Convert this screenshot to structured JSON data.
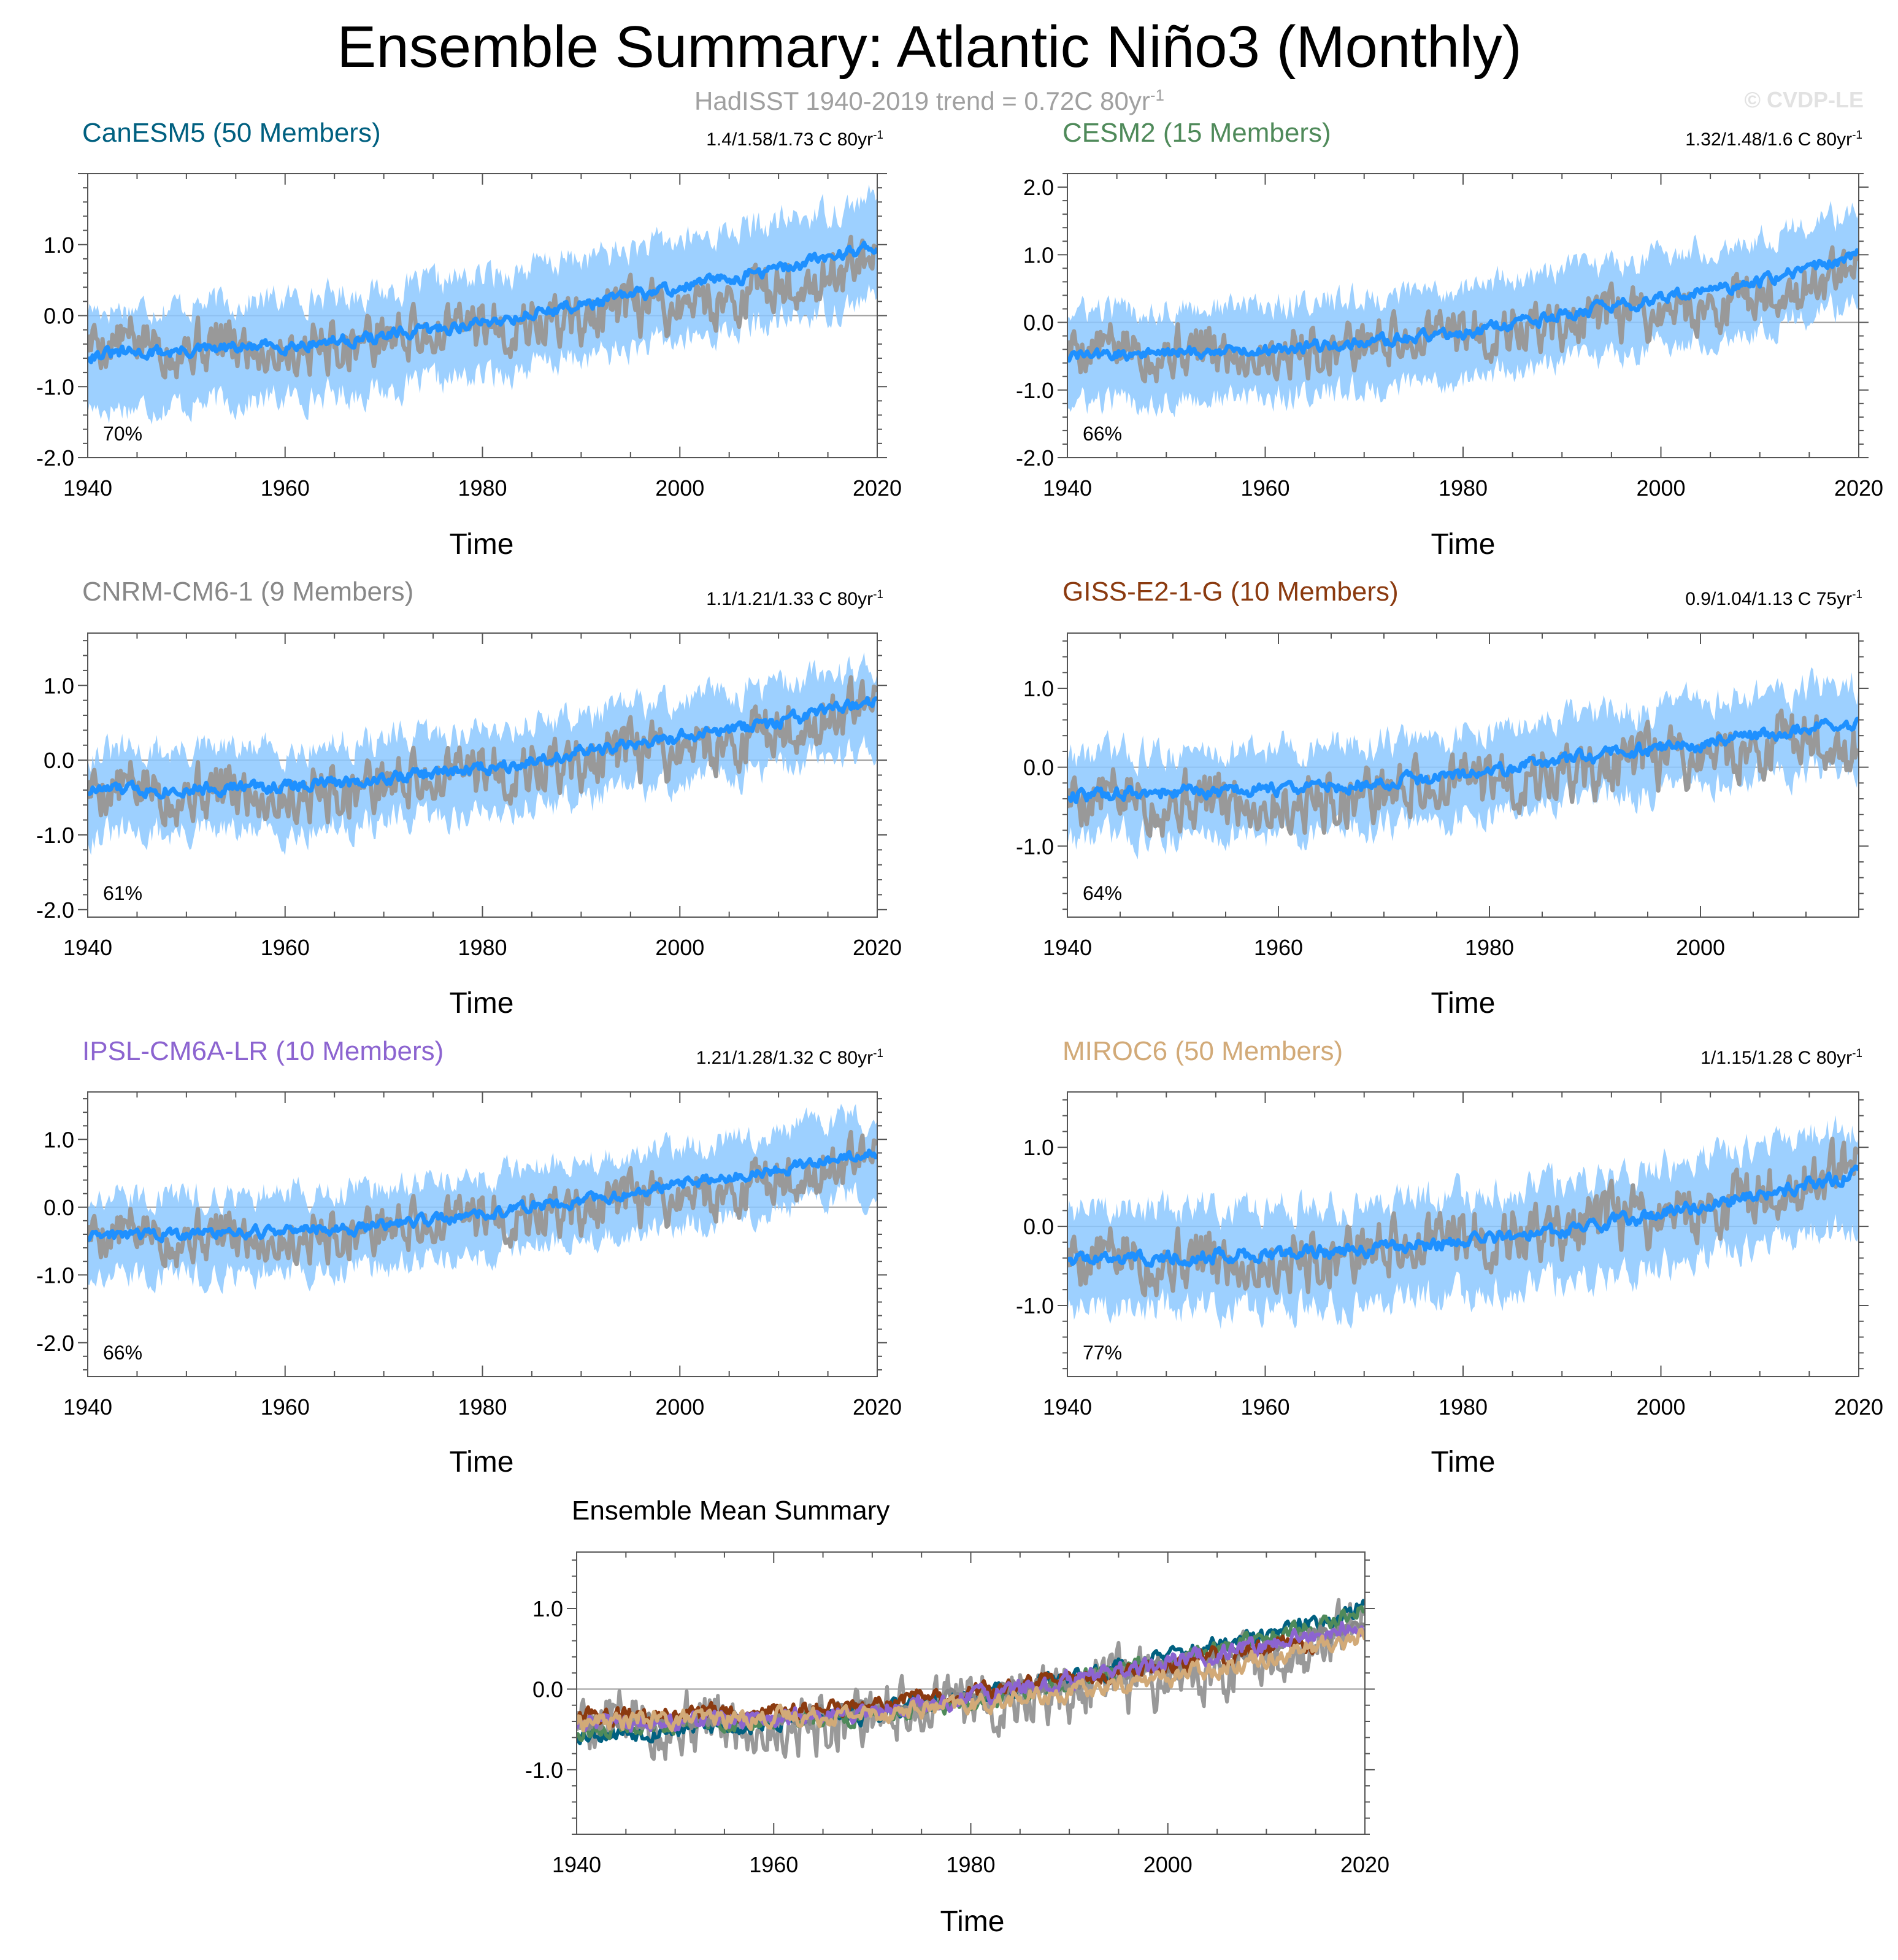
{
  "title": "Ensemble Summary: Atlantic Niño3 (Monthly)",
  "subtitle": {
    "text": "HadISST 1940-2019 trend = 0.72C 80yr",
    "sup": "-1"
  },
  "copyright": "© CVDP-LE",
  "colors": {
    "obs": "#999999",
    "ensemble_mean": "#1e90ff",
    "ensemble_spread": "#8cc8ff",
    "CanESM5": "#006080",
    "CESM2": "#4f8a5a",
    "CNRM-CM6-1": "#888888",
    "GISS-E2-1-G": "#8b3a0f",
    "IPSL-CM6A-LR": "#8c64d0",
    "MIROC6": "#d2aa78"
  },
  "chart_data": [
    {
      "type": "line",
      "id": "canesm5",
      "title": "CanESM5 (50 Members)",
      "title_color": "#006080",
      "trend": "1.4/1.58/1.73 C 80yr",
      "trend_sup": "-1",
      "xlabel": "Time",
      "ylabel": "",
      "xlim": [
        1940,
        2020
      ],
      "ylim": [
        -2.0,
        2.0
      ],
      "xticks": [
        1940,
        1960,
        1980,
        2000,
        2020
      ],
      "yticks": [
        -2.0,
        -1.0,
        0.0,
        1.0
      ],
      "ytick_labels": [
        "-2.0",
        "-1.0",
        "0.0",
        "1.0"
      ],
      "pct": "70%",
      "series": [
        {
          "name": "HadISST",
          "x": [
            1940,
            1950,
            1960,
            1970,
            1980,
            1990,
            2000,
            2010,
            2020
          ],
          "values": [
            -0.35,
            -0.4,
            -0.45,
            -0.3,
            -0.15,
            -0.05,
            0.15,
            0.35,
            0.7
          ]
        },
        {
          "name": "Ensemble mean",
          "x": [
            1940,
            1950,
            1960,
            1970,
            1980,
            1990,
            2000,
            2010,
            2020
          ],
          "values": [
            -0.55,
            -0.5,
            -0.42,
            -0.3,
            -0.1,
            0.15,
            0.4,
            0.65,
            1.0
          ]
        }
      ],
      "spread": {
        "lower_offset": -0.75,
        "upper_offset": 0.65
      }
    },
    {
      "type": "line",
      "id": "cesm2",
      "title": "CESM2 (15 Members)",
      "title_color": "#4f8a5a",
      "trend": "1.32/1.48/1.6 C 80yr",
      "trend_sup": "-1",
      "xlabel": "Time",
      "ylabel": "",
      "xlim": [
        1940,
        2020
      ],
      "ylim": [
        -2.0,
        2.2
      ],
      "xticks": [
        1940,
        1960,
        1980,
        2000,
        2020
      ],
      "yticks": [
        -2.0,
        -1.0,
        0.0,
        1.0,
        2.0
      ],
      "ytick_labels": [
        "-2.0",
        "-1.0",
        "0.0",
        "1.0",
        "2.0"
      ],
      "pct": "66%",
      "series": [
        {
          "name": "HadISST",
          "x": [
            1940,
            1950,
            1960,
            1970,
            1980,
            1990,
            2000,
            2010,
            2020
          ],
          "values": [
            -0.35,
            -0.4,
            -0.45,
            -0.3,
            -0.15,
            -0.05,
            0.15,
            0.35,
            0.7
          ]
        },
        {
          "name": "Ensemble mean",
          "x": [
            1940,
            1950,
            1960,
            1970,
            1980,
            1990,
            2000,
            2010,
            2020
          ],
          "values": [
            -0.5,
            -0.45,
            -0.4,
            -0.3,
            -0.15,
            0.1,
            0.35,
            0.6,
            1.0
          ]
        }
      ],
      "spread": {
        "lower_offset": -0.7,
        "upper_offset": 0.65
      }
    },
    {
      "type": "line",
      "id": "cnrm",
      "title": "CNRM-CM6-1 (9 Members)",
      "title_color": "#888888",
      "trend": "1.1/1.21/1.33 C 80yr",
      "trend_sup": "-1",
      "xlabel": "Time",
      "ylabel": "",
      "xlim": [
        1940,
        2020
      ],
      "ylim": [
        -2.1,
        1.7
      ],
      "xticks": [
        1940,
        1960,
        1980,
        2000,
        2020
      ],
      "yticks": [
        -2.0,
        -1.0,
        0.0,
        1.0
      ],
      "ytick_labels": [
        "-2.0",
        "-1.0",
        "0.0",
        "1.0"
      ],
      "pct": "61%",
      "series": [
        {
          "name": "HadISST",
          "x": [
            1940,
            1950,
            1960,
            1970,
            1980,
            1990,
            2000,
            2010,
            2020
          ],
          "values": [
            -0.35,
            -0.4,
            -0.45,
            -0.3,
            -0.15,
            -0.05,
            0.15,
            0.35,
            0.7
          ]
        },
        {
          "name": "Ensemble mean",
          "x": [
            1940,
            1950,
            1960,
            1970,
            1980,
            1990,
            2000,
            2010,
            2020
          ],
          "values": [
            -0.4,
            -0.38,
            -0.35,
            -0.25,
            -0.1,
            0.1,
            0.3,
            0.5,
            0.8
          ]
        }
      ],
      "spread": {
        "lower_offset": -0.6,
        "upper_offset": 0.5
      }
    },
    {
      "type": "line",
      "id": "giss",
      "title": "GISS-E2-1-G (10 Members)",
      "title_color": "#8b3a0f",
      "trend": "0.9/1.04/1.13 C 75yr",
      "trend_sup": "-1",
      "xlabel": "Time",
      "ylabel": "",
      "xlim": [
        1940,
        2015
      ],
      "ylim": [
        -1.9,
        1.7
      ],
      "xticks": [
        1940,
        1960,
        1980,
        2000
      ],
      "yticks": [
        -1.0,
        0.0,
        1.0
      ],
      "ytick_labels": [
        "-1.0",
        "0.0",
        "1.0"
      ],
      "pct": "64%",
      "series": [
        {
          "name": "HadISST",
          "x": [
            1940,
            1950,
            1960,
            1970,
            1980,
            1990,
            2000,
            2010,
            2015
          ],
          "values": [
            -0.35,
            -0.4,
            -0.45,
            -0.3,
            -0.15,
            -0.05,
            0.15,
            0.35,
            0.2
          ]
        },
        {
          "name": "Ensemble mean",
          "x": [
            1940,
            1950,
            1960,
            1970,
            1980,
            1990,
            2000,
            2010,
            2015
          ],
          "values": [
            -0.35,
            -0.32,
            -0.28,
            -0.2,
            -0.05,
            0.15,
            0.3,
            0.5,
            0.55
          ]
        }
      ],
      "spread": {
        "lower_offset": -0.55,
        "upper_offset": 0.5
      }
    },
    {
      "type": "line",
      "id": "ipsl",
      "title": "IPSL-CM6A-LR (10 Members)",
      "title_color": "#8c64d0",
      "trend": "1.21/1.28/1.32 C 80yr",
      "trend_sup": "-1",
      "xlabel": "Time",
      "ylabel": "",
      "xlim": [
        1940,
        2020
      ],
      "ylim": [
        -2.5,
        1.7
      ],
      "xticks": [
        1940,
        1960,
        1980,
        2000,
        2020
      ],
      "yticks": [
        -2.0,
        -1.0,
        0.0,
        1.0
      ],
      "ytick_labels": [
        "-2.0",
        "-1.0",
        "0.0",
        "1.0"
      ],
      "pct": "66%",
      "series": [
        {
          "name": "HadISST",
          "x": [
            1940,
            1950,
            1960,
            1970,
            1980,
            1990,
            2000,
            2010,
            2020
          ],
          "values": [
            -0.35,
            -0.4,
            -0.45,
            -0.3,
            -0.15,
            -0.05,
            0.15,
            0.35,
            0.7
          ]
        },
        {
          "name": "Ensemble mean",
          "x": [
            1940,
            1950,
            1960,
            1970,
            1980,
            1990,
            2000,
            2010,
            2020
          ],
          "values": [
            -0.45,
            -0.4,
            -0.35,
            -0.28,
            -0.1,
            0.1,
            0.35,
            0.55,
            0.8
          ]
        }
      ],
      "spread": {
        "lower_offset": -0.6,
        "upper_offset": 0.55
      }
    },
    {
      "type": "line",
      "id": "miroc6",
      "title": "MIROC6 (50 Members)",
      "title_color": "#d2aa78",
      "trend": "1/1.15/1.28 C 80yr",
      "trend_sup": "-1",
      "xlabel": "Time",
      "ylabel": "",
      "xlim": [
        1940,
        2020
      ],
      "ylim": [
        -1.9,
        1.7
      ],
      "xticks": [
        1940,
        1960,
        1980,
        2000,
        2020
      ],
      "yticks": [
        -1.0,
        0.0,
        1.0
      ],
      "ytick_labels": [
        "-1.0",
        "0.0",
        "1.0"
      ],
      "pct": "77%",
      "series": [
        {
          "name": "HadISST",
          "x": [
            1940,
            1950,
            1960,
            1970,
            1980,
            1990,
            2000,
            2010,
            2020
          ],
          "values": [
            -0.35,
            -0.4,
            -0.45,
            -0.3,
            -0.15,
            -0.05,
            0.15,
            0.35,
            0.7
          ]
        },
        {
          "name": "Ensemble mean",
          "x": [
            1940,
            1950,
            1960,
            1970,
            1980,
            1990,
            2000,
            2010,
            2020
          ],
          "values": [
            -0.4,
            -0.38,
            -0.35,
            -0.3,
            -0.2,
            -0.05,
            0.15,
            0.4,
            0.65
          ]
        }
      ],
      "spread": {
        "lower_offset": -0.65,
        "upper_offset": 0.6
      }
    },
    {
      "type": "line",
      "id": "ensmean",
      "title": "Ensemble Mean Summary",
      "title_color": "#000000",
      "trend": "",
      "trend_sup": "",
      "xlabel": "Time",
      "ylabel": "",
      "xlim": [
        1940,
        2020
      ],
      "ylim": [
        -1.8,
        1.7
      ],
      "xticks": [
        1940,
        1960,
        1980,
        2000,
        2020
      ],
      "yticks": [
        -1.0,
        0.0,
        1.0
      ],
      "ytick_labels": [
        "-1.0",
        "0.0",
        "1.0"
      ],
      "pct": "",
      "series": [
        {
          "name": "HadISST",
          "x": [
            1940,
            1950,
            1960,
            1970,
            1980,
            1990,
            2000,
            2010,
            2020
          ],
          "values": [
            -0.35,
            -0.4,
            -0.45,
            -0.3,
            -0.15,
            -0.05,
            0.15,
            0.35,
            0.7
          ]
        },
        {
          "name": "CanESM5",
          "x": [
            1940,
            1950,
            1960,
            1970,
            1980,
            1990,
            2000,
            2010,
            2020
          ],
          "values": [
            -0.55,
            -0.5,
            -0.42,
            -0.3,
            -0.1,
            0.15,
            0.4,
            0.65,
            1.0
          ]
        },
        {
          "name": "CESM2",
          "x": [
            1940,
            1950,
            1960,
            1970,
            1980,
            1990,
            2000,
            2010,
            2020
          ],
          "values": [
            -0.5,
            -0.45,
            -0.4,
            -0.3,
            -0.15,
            0.1,
            0.35,
            0.6,
            1.0
          ]
        },
        {
          "name": "CNRM-CM6-1",
          "x": [
            1940,
            1950,
            1960,
            1970,
            1980,
            1990,
            2000,
            2010,
            2020
          ],
          "values": [
            -0.4,
            -0.38,
            -0.35,
            -0.25,
            -0.1,
            0.1,
            0.3,
            0.5,
            0.8
          ]
        },
        {
          "name": "GISS-E2-1-G",
          "x": [
            1940,
            1950,
            1960,
            1970,
            1980,
            1990,
            2000,
            2010,
            2015
          ],
          "values": [
            -0.35,
            -0.32,
            -0.28,
            -0.2,
            -0.05,
            0.15,
            0.3,
            0.5,
            0.55
          ]
        },
        {
          "name": "IPSL-CM6A-LR",
          "x": [
            1940,
            1950,
            1960,
            1970,
            1980,
            1990,
            2000,
            2010,
            2020
          ],
          "values": [
            -0.45,
            -0.4,
            -0.35,
            -0.28,
            -0.1,
            0.1,
            0.35,
            0.55,
            0.8
          ]
        },
        {
          "name": "MIROC6",
          "x": [
            1940,
            1950,
            1960,
            1970,
            1980,
            1990,
            2000,
            2010,
            2020
          ],
          "values": [
            -0.4,
            -0.38,
            -0.35,
            -0.3,
            -0.2,
            -0.05,
            0.15,
            0.4,
            0.65
          ]
        }
      ]
    }
  ]
}
